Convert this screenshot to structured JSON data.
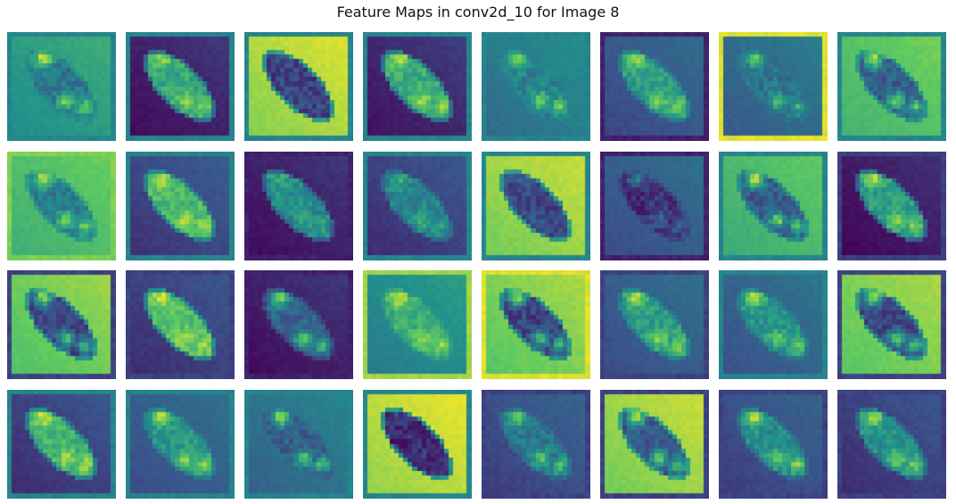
{
  "figure": {
    "title": "Feature Maps in conv2d_10 for Image 8",
    "colormap": "viridis",
    "rows": 4,
    "cols": 8,
    "map_count": 32
  },
  "maps": [
    {
      "index": 1,
      "background": 0.55,
      "object": 0.4,
      "hotspot": 0.92,
      "frame": 0.45
    },
    {
      "index": 2,
      "background": 0.1,
      "object": 0.6,
      "hotspot": 0.85,
      "frame": 0.45
    },
    {
      "index": 3,
      "background": 0.88,
      "object": 0.2,
      "hotspot": 0.25,
      "frame": 0.45
    },
    {
      "index": 4,
      "background": 0.12,
      "object": 0.62,
      "hotspot": 0.9,
      "frame": 0.45
    },
    {
      "index": 5,
      "background": 0.42,
      "object": 0.45,
      "hotspot": 0.88,
      "frame": 0.45
    },
    {
      "index": 6,
      "background": 0.28,
      "object": 0.55,
      "hotspot": 0.85,
      "frame": 0.1
    },
    {
      "index": 7,
      "background": 0.35,
      "object": 0.38,
      "hotspot": 0.75,
      "frame": 0.95
    },
    {
      "index": 8,
      "background": 0.72,
      "object": 0.3,
      "hotspot": 0.9,
      "frame": 0.45
    },
    {
      "index": 9,
      "background": 0.7,
      "object": 0.42,
      "hotspot": 0.9,
      "frame": 0.8
    },
    {
      "index": 10,
      "background": 0.22,
      "object": 0.68,
      "hotspot": 0.92,
      "frame": 0.45
    },
    {
      "index": 11,
      "background": 0.1,
      "object": 0.48,
      "hotspot": 0.6,
      "frame": 0.1
    },
    {
      "index": 12,
      "background": 0.2,
      "object": 0.45,
      "hotspot": 0.62,
      "frame": 0.45
    },
    {
      "index": 13,
      "background": 0.85,
      "object": 0.22,
      "hotspot": 0.28,
      "frame": 0.45
    },
    {
      "index": 14,
      "background": 0.3,
      "object": 0.15,
      "hotspot": 0.4,
      "frame": 0.1
    },
    {
      "index": 15,
      "background": 0.68,
      "object": 0.28,
      "hotspot": 0.92,
      "frame": 0.45
    },
    {
      "index": 16,
      "background": 0.08,
      "object": 0.55,
      "hotspot": 0.9,
      "frame": 0.2
    },
    {
      "index": 17,
      "background": 0.78,
      "object": 0.2,
      "hotspot": 0.85,
      "frame": 0.2
    },
    {
      "index": 18,
      "background": 0.2,
      "object": 0.7,
      "hotspot": 0.92,
      "frame": 0.2
    },
    {
      "index": 19,
      "background": 0.1,
      "object": 0.32,
      "hotspot": 0.85,
      "frame": 0.1
    },
    {
      "index": 20,
      "background": 0.48,
      "object": 0.62,
      "hotspot": 0.95,
      "frame": 0.85
    },
    {
      "index": 21,
      "background": 0.8,
      "object": 0.2,
      "hotspot": 0.85,
      "frame": 0.95
    },
    {
      "index": 22,
      "background": 0.3,
      "object": 0.55,
      "hotspot": 0.9,
      "frame": 0.2
    },
    {
      "index": 23,
      "background": 0.32,
      "object": 0.5,
      "hotspot": 0.9,
      "frame": 0.45
    },
    {
      "index": 24,
      "background": 0.8,
      "object": 0.22,
      "hotspot": 0.9,
      "frame": 0.2
    },
    {
      "index": 25,
      "background": 0.2,
      "object": 0.65,
      "hotspot": 0.95,
      "frame": 0.45
    },
    {
      "index": 26,
      "background": 0.3,
      "object": 0.52,
      "hotspot": 0.9,
      "frame": 0.45
    },
    {
      "index": 27,
      "background": 0.38,
      "object": 0.3,
      "hotspot": 0.85,
      "frame": 0.45
    },
    {
      "index": 28,
      "background": 0.9,
      "object": 0.12,
      "hotspot": 0.2,
      "frame": 0.45
    },
    {
      "index": 29,
      "background": 0.25,
      "object": 0.4,
      "hotspot": 0.8,
      "frame": 0.2
    },
    {
      "index": 30,
      "background": 0.85,
      "object": 0.28,
      "hotspot": 0.9,
      "frame": 0.2
    },
    {
      "index": 31,
      "background": 0.25,
      "object": 0.48,
      "hotspot": 0.92,
      "frame": 0.2
    },
    {
      "index": 32,
      "background": 0.2,
      "object": 0.5,
      "hotspot": 0.9,
      "frame": 0.2
    }
  ]
}
